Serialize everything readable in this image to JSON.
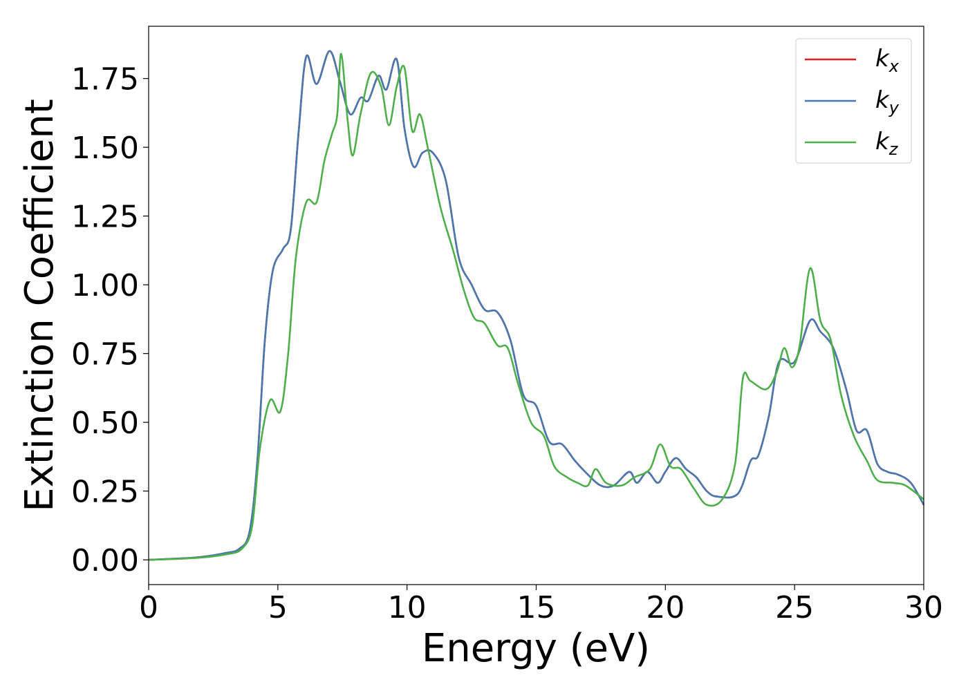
{
  "chart_data": {
    "type": "line",
    "xlabel": "Energy (eV)",
    "ylabel": "Extinction Coefficient",
    "xlim": [
      0,
      30
    ],
    "ylim": [
      -0.09,
      1.94
    ],
    "x_ticks": [
      "0",
      "5",
      "10",
      "15",
      "20",
      "25",
      "30"
    ],
    "y_ticks": [
      "0.00",
      "0.25",
      "0.50",
      "0.75",
      "1.00",
      "1.25",
      "1.50",
      "1.75"
    ],
    "grid": false,
    "legend_position": "top-right",
    "series": [
      {
        "name": "k",
        "subscript": "x",
        "color": "#e41a1c",
        "points": [
          [
            0,
            0
          ],
          [
            1,
            0.004
          ],
          [
            2,
            0.01
          ],
          [
            3,
            0.025
          ],
          [
            3.5,
            0.04
          ],
          [
            3.9,
            0.1
          ],
          [
            4.2,
            0.35
          ],
          [
            4.5,
            0.8
          ],
          [
            4.8,
            1.05
          ],
          [
            5.2,
            1.13
          ],
          [
            5.5,
            1.2
          ],
          [
            5.8,
            1.55
          ],
          [
            6.1,
            1.83
          ],
          [
            6.5,
            1.73
          ],
          [
            7.0,
            1.85
          ],
          [
            7.4,
            1.74
          ],
          [
            7.8,
            1.62
          ],
          [
            8.2,
            1.68
          ],
          [
            8.5,
            1.67
          ],
          [
            8.9,
            1.76
          ],
          [
            9.2,
            1.71
          ],
          [
            9.6,
            1.82
          ],
          [
            9.9,
            1.57
          ],
          [
            10.25,
            1.43
          ],
          [
            10.6,
            1.48
          ],
          [
            11.0,
            1.48
          ],
          [
            11.5,
            1.38
          ],
          [
            12.0,
            1.1
          ],
          [
            12.5,
            1.0
          ],
          [
            13.0,
            0.91
          ],
          [
            13.5,
            0.9
          ],
          [
            14.0,
            0.8
          ],
          [
            14.5,
            0.6
          ],
          [
            15.0,
            0.56
          ],
          [
            15.5,
            0.43
          ],
          [
            16.0,
            0.42
          ],
          [
            16.5,
            0.36
          ],
          [
            17.0,
            0.31
          ],
          [
            17.5,
            0.27
          ],
          [
            18.0,
            0.27
          ],
          [
            18.6,
            0.32
          ],
          [
            18.9,
            0.28
          ],
          [
            19.3,
            0.32
          ],
          [
            19.7,
            0.28
          ],
          [
            20.0,
            0.32
          ],
          [
            20.4,
            0.37
          ],
          [
            20.8,
            0.33
          ],
          [
            21.2,
            0.3
          ],
          [
            21.6,
            0.25
          ],
          [
            22.0,
            0.23
          ],
          [
            22.8,
            0.24
          ],
          [
            23.3,
            0.36
          ],
          [
            23.6,
            0.38
          ],
          [
            24.0,
            0.52
          ],
          [
            24.4,
            0.72
          ],
          [
            25.0,
            0.72
          ],
          [
            25.6,
            0.87
          ],
          [
            26.0,
            0.83
          ],
          [
            26.5,
            0.77
          ],
          [
            27.0,
            0.62
          ],
          [
            27.4,
            0.47
          ],
          [
            27.8,
            0.47
          ],
          [
            28.2,
            0.35
          ],
          [
            28.6,
            0.32
          ],
          [
            29.0,
            0.31
          ],
          [
            29.5,
            0.28
          ],
          [
            30,
            0.2
          ]
        ]
      },
      {
        "name": "k",
        "subscript": "y",
        "color": "#4778b0",
        "points": [
          [
            0,
            0
          ],
          [
            1,
            0.004
          ],
          [
            2,
            0.01
          ],
          [
            3,
            0.025
          ],
          [
            3.5,
            0.04
          ],
          [
            3.9,
            0.1
          ],
          [
            4.2,
            0.35
          ],
          [
            4.5,
            0.8
          ],
          [
            4.8,
            1.05
          ],
          [
            5.2,
            1.13
          ],
          [
            5.5,
            1.2
          ],
          [
            5.8,
            1.55
          ],
          [
            6.1,
            1.83
          ],
          [
            6.5,
            1.73
          ],
          [
            7.0,
            1.85
          ],
          [
            7.4,
            1.74
          ],
          [
            7.8,
            1.62
          ],
          [
            8.2,
            1.68
          ],
          [
            8.5,
            1.67
          ],
          [
            8.9,
            1.76
          ],
          [
            9.2,
            1.71
          ],
          [
            9.6,
            1.82
          ],
          [
            9.9,
            1.57
          ],
          [
            10.25,
            1.43
          ],
          [
            10.6,
            1.48
          ],
          [
            11.0,
            1.48
          ],
          [
            11.5,
            1.38
          ],
          [
            12.0,
            1.1
          ],
          [
            12.5,
            1.0
          ],
          [
            13.0,
            0.91
          ],
          [
            13.5,
            0.9
          ],
          [
            14.0,
            0.8
          ],
          [
            14.5,
            0.6
          ],
          [
            15.0,
            0.56
          ],
          [
            15.5,
            0.43
          ],
          [
            16.0,
            0.42
          ],
          [
            16.5,
            0.36
          ],
          [
            17.0,
            0.31
          ],
          [
            17.5,
            0.27
          ],
          [
            18.0,
            0.27
          ],
          [
            18.6,
            0.32
          ],
          [
            18.9,
            0.28
          ],
          [
            19.3,
            0.32
          ],
          [
            19.7,
            0.28
          ],
          [
            20.0,
            0.32
          ],
          [
            20.4,
            0.37
          ],
          [
            20.8,
            0.33
          ],
          [
            21.2,
            0.3
          ],
          [
            21.6,
            0.25
          ],
          [
            22.0,
            0.23
          ],
          [
            22.8,
            0.24
          ],
          [
            23.3,
            0.36
          ],
          [
            23.6,
            0.38
          ],
          [
            24.0,
            0.52
          ],
          [
            24.4,
            0.72
          ],
          [
            25.0,
            0.72
          ],
          [
            25.6,
            0.87
          ],
          [
            26.0,
            0.83
          ],
          [
            26.5,
            0.77
          ],
          [
            27.0,
            0.62
          ],
          [
            27.4,
            0.47
          ],
          [
            27.8,
            0.47
          ],
          [
            28.2,
            0.35
          ],
          [
            28.6,
            0.32
          ],
          [
            29.0,
            0.31
          ],
          [
            29.5,
            0.28
          ],
          [
            30,
            0.2
          ]
        ]
      },
      {
        "name": "k",
        "subscript": "z",
        "color": "#4daf4a",
        "points": [
          [
            0,
            0
          ],
          [
            1,
            0.003
          ],
          [
            2,
            0.008
          ],
          [
            3,
            0.02
          ],
          [
            3.6,
            0.04
          ],
          [
            4.0,
            0.12
          ],
          [
            4.3,
            0.4
          ],
          [
            4.7,
            0.58
          ],
          [
            5.1,
            0.54
          ],
          [
            5.4,
            0.75
          ],
          [
            5.7,
            1.1
          ],
          [
            6.1,
            1.3
          ],
          [
            6.5,
            1.3
          ],
          [
            6.8,
            1.45
          ],
          [
            7.1,
            1.55
          ],
          [
            7.3,
            1.62
          ],
          [
            7.45,
            1.84
          ],
          [
            7.7,
            1.6
          ],
          [
            7.9,
            1.47
          ],
          [
            8.2,
            1.62
          ],
          [
            8.6,
            1.77
          ],
          [
            9.0,
            1.72
          ],
          [
            9.3,
            1.58
          ],
          [
            9.6,
            1.72
          ],
          [
            9.9,
            1.79
          ],
          [
            10.2,
            1.56
          ],
          [
            10.5,
            1.62
          ],
          [
            10.8,
            1.5
          ],
          [
            11.3,
            1.28
          ],
          [
            11.8,
            1.12
          ],
          [
            12.2,
            0.98
          ],
          [
            12.6,
            0.88
          ],
          [
            13.0,
            0.86
          ],
          [
            13.5,
            0.78
          ],
          [
            13.9,
            0.77
          ],
          [
            14.3,
            0.64
          ],
          [
            14.8,
            0.5
          ],
          [
            15.3,
            0.45
          ],
          [
            15.7,
            0.34
          ],
          [
            16.2,
            0.3
          ],
          [
            16.6,
            0.28
          ],
          [
            17.0,
            0.27
          ],
          [
            17.3,
            0.33
          ],
          [
            17.7,
            0.28
          ],
          [
            18.3,
            0.27
          ],
          [
            18.8,
            0.3
          ],
          [
            19.4,
            0.33
          ],
          [
            19.8,
            0.42
          ],
          [
            20.2,
            0.34
          ],
          [
            20.6,
            0.33
          ],
          [
            21.1,
            0.26
          ],
          [
            21.6,
            0.2
          ],
          [
            22.2,
            0.22
          ],
          [
            22.7,
            0.35
          ],
          [
            23.0,
            0.66
          ],
          [
            23.3,
            0.65
          ],
          [
            23.9,
            0.62
          ],
          [
            24.3,
            0.68
          ],
          [
            24.6,
            0.77
          ],
          [
            24.9,
            0.7
          ],
          [
            25.2,
            0.78
          ],
          [
            25.6,
            1.06
          ],
          [
            26.0,
            0.87
          ],
          [
            26.4,
            0.8
          ],
          [
            26.8,
            0.6
          ],
          [
            27.3,
            0.45
          ],
          [
            27.8,
            0.36
          ],
          [
            28.2,
            0.29
          ],
          [
            28.8,
            0.28
          ],
          [
            29.3,
            0.27
          ],
          [
            30,
            0.22
          ]
        ]
      }
    ]
  }
}
